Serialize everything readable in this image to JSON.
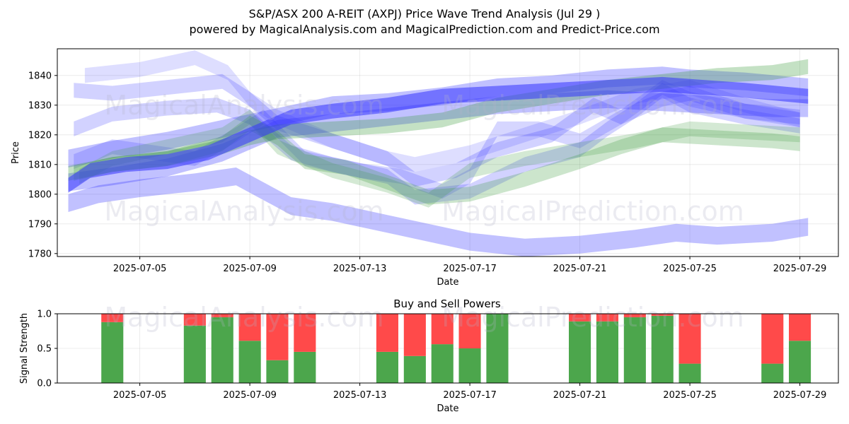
{
  "figure": {
    "title_line1": "S&P/ASX 200 A-REIT (AXPJ) Price Wave Trend Analysis (Jul 29 )",
    "title_line2": "powered by MagicalAnalysis.com and MagicalPrediction.com and Predict-Price.com"
  },
  "watermarks": {
    "top_a": "MagicalAnalysis.com",
    "top_b": "MagicalPrediction.com",
    "mid_a": "MagicalAnalysis.com",
    "mid_b": "MagicalPrediction.com",
    "low_a": "MagicalAnalysis.com",
    "low_b": "MagicalPrediction.com"
  },
  "colors": {
    "green": "#3a9a3a",
    "blue": "#3333ff",
    "buy": "#4ca64c",
    "sell": "#ff4a4a"
  },
  "chart_data": [
    {
      "type": "area",
      "title": "",
      "xlabel": "Date",
      "ylabel": "Price",
      "x_range": [
        0,
        28.4
      ],
      "x_origin_date": "2025-07-02",
      "ylim": [
        1779,
        1849
      ],
      "x_ticks": [
        {
          "x": 3,
          "label": "2025-07-05"
        },
        {
          "x": 7,
          "label": "2025-07-09"
        },
        {
          "x": 11,
          "label": "2025-07-13"
        },
        {
          "x": 15,
          "label": "2025-07-17"
        },
        {
          "x": 19,
          "label": "2025-07-21"
        },
        {
          "x": 23,
          "label": "2025-07-25"
        },
        {
          "x": 27,
          "label": "2025-07-29"
        }
      ],
      "y_ticks": [
        1780,
        1790,
        1800,
        1810,
        1820,
        1830,
        1840
      ],
      "grid": true,
      "bands": [
        {
          "color": "blue",
          "opacity": 0.3,
          "width": 6,
          "x": [
            0.4,
            1.5,
            3,
            5,
            6.5,
            7.5,
            8.5,
            10,
            12,
            14,
            15,
            17,
            19,
            21,
            22.5,
            24,
            26,
            27.3
          ],
          "y": [
            1797,
            1800,
            1802,
            1804,
            1806,
            1801,
            1796,
            1794,
            1790,
            1786,
            1784,
            1782,
            1783,
            1785,
            1787,
            1786,
            1787,
            1789
          ]
        },
        {
          "color": "blue",
          "opacity": 0.3,
          "width": 6,
          "x": [
            0.4,
            2,
            4,
            6,
            7,
            8,
            10,
            12,
            14,
            16,
            18,
            20,
            22,
            23,
            25,
            27.3
          ],
          "y": [
            1812,
            1815,
            1818,
            1822,
            1824,
            1826,
            1830,
            1831,
            1833,
            1836,
            1837,
            1839,
            1840,
            1839,
            1838,
            1836
          ]
        },
        {
          "color": "blue",
          "opacity": 0.3,
          "width": 6,
          "x": [
            0.4,
            2,
            4,
            6,
            7,
            8,
            10,
            12,
            14,
            16,
            18,
            20,
            22,
            24,
            26,
            27.3
          ],
          "y": [
            1804,
            1806,
            1809,
            1814,
            1818,
            1822,
            1824,
            1826,
            1828,
            1830,
            1831,
            1832,
            1831,
            1830,
            1829,
            1829
          ]
        },
        {
          "color": "blue",
          "opacity": 0.22,
          "width": 5,
          "x": [
            0.6,
            2,
            4,
            6,
            7,
            8,
            10,
            12,
            13,
            14.5,
            16,
            18,
            19.5,
            20.5,
            22,
            23,
            25,
            27
          ],
          "y": [
            1835,
            1834,
            1836,
            1838,
            1832,
            1824,
            1818,
            1812,
            1805,
            1808,
            1815,
            1820,
            1830,
            1826,
            1832,
            1834,
            1828,
            1826
          ]
        },
        {
          "color": "blue",
          "opacity": 0.22,
          "width": 5,
          "x": [
            0.6,
            2,
            4,
            5.8,
            7,
            8.5,
            10,
            12,
            13,
            15,
            17,
            19,
            20,
            21,
            22,
            23,
            25,
            27
          ],
          "y": [
            1822,
            1827,
            1829,
            1830,
            1826,
            1814,
            1810,
            1806,
            1799,
            1801,
            1810,
            1815,
            1822,
            1828,
            1835,
            1830,
            1826,
            1823
          ]
        },
        {
          "color": "blue",
          "opacity": 0.2,
          "width": 5,
          "x": [
            0.6,
            2,
            3.5,
            5,
            6.5,
            7.5,
            9,
            11,
            12.5,
            14,
            15,
            16,
            17.5,
            19,
            20.5,
            22,
            23,
            25,
            27
          ],
          "y": [
            1811,
            1816,
            1814,
            1812,
            1820,
            1826,
            1812,
            1808,
            1806,
            1801,
            1806,
            1822,
            1822,
            1818,
            1826,
            1836,
            1832,
            1828,
            1825
          ]
        },
        {
          "color": "blue",
          "opacity": 0.16,
          "width": 5,
          "x": [
            1,
            3,
            5,
            6.2,
            7,
            8,
            10,
            12,
            13,
            15,
            17,
            19,
            21,
            23,
            25,
            27
          ],
          "y": [
            1840,
            1842,
            1846,
            1841,
            1832,
            1826,
            1818,
            1812,
            1810,
            1814,
            1820,
            1826,
            1833,
            1836,
            1830,
            1825
          ]
        },
        {
          "color": "green",
          "opacity": 0.3,
          "width": 5,
          "x": [
            0.4,
            2,
            4,
            6,
            7,
            8,
            10,
            12,
            14,
            16,
            18,
            20,
            22,
            24,
            26,
            27.3
          ],
          "y": [
            1807,
            1810,
            1812,
            1816,
            1819,
            1821,
            1822,
            1823,
            1825,
            1830,
            1833,
            1836,
            1838,
            1840,
            1841,
            1843
          ]
        },
        {
          "color": "green",
          "opacity": 0.26,
          "width": 5,
          "x": [
            0.6,
            2,
            4,
            6,
            7,
            8,
            9,
            10.5,
            12,
            13.5,
            15,
            17,
            19,
            20.5,
            22,
            24,
            26,
            27
          ],
          "y": [
            1807,
            1810,
            1812,
            1817,
            1824,
            1819,
            1811,
            1809,
            1804,
            1799,
            1800,
            1805,
            1811,
            1816,
            1820,
            1819,
            1818,
            1817
          ]
        },
        {
          "color": "green",
          "opacity": 0.22,
          "width": 5,
          "x": [
            0.8,
            2,
            4,
            6,
            7,
            8,
            10,
            12,
            13.5,
            15,
            17,
            19,
            21,
            23,
            25,
            27
          ],
          "y": [
            1806,
            1812,
            1816,
            1820,
            1826,
            1816,
            1808,
            1803,
            1798,
            1808,
            1812,
            1815,
            1818,
            1822,
            1821,
            1820
          ]
        },
        {
          "color": "blue",
          "opacity": 0.55,
          "width": 5,
          "x": [
            0.4,
            1.2,
            2.5,
            4,
            5.5,
            7,
            8.5,
            10,
            12,
            14,
            16,
            18,
            20,
            22,
            23.5,
            25,
            27.3
          ],
          "y": [
            1803,
            1808,
            1810,
            1811,
            1814,
            1820,
            1826,
            1828,
            1830,
            1833,
            1834,
            1835,
            1836,
            1837,
            1836,
            1835,
            1833
          ]
        }
      ]
    },
    {
      "type": "bar",
      "title": "Buy and Sell Powers",
      "xlabel": "Date",
      "ylabel": "Signal Strength",
      "ylim": [
        0,
        1
      ],
      "x_range": [
        0,
        28.4
      ],
      "x_ticks": [
        {
          "x": 3,
          "label": "2025-07-05"
        },
        {
          "x": 7,
          "label": "2025-07-09"
        },
        {
          "x": 11,
          "label": "2025-07-13"
        },
        {
          "x": 15,
          "label": "2025-07-17"
        },
        {
          "x": 19,
          "label": "2025-07-21"
        },
        {
          "x": 23,
          "label": "2025-07-25"
        },
        {
          "x": 27,
          "label": "2025-07-29"
        }
      ],
      "y_ticks": [
        {
          "v": 0,
          "label": "0.0"
        },
        {
          "v": 0.5,
          "label": "0.5"
        },
        {
          "v": 1,
          "label": "1.0"
        }
      ],
      "series": [
        {
          "name": "Buy",
          "color": "buy",
          "x": [
            2,
            5,
            6,
            7,
            8,
            9,
            12,
            13,
            14,
            15,
            16,
            19,
            20,
            21,
            22,
            23,
            26,
            27
          ],
          "values": [
            0.88,
            0.83,
            0.95,
            0.61,
            0.33,
            0.45,
            0.45,
            0.39,
            0.56,
            0.5,
            1.0,
            0.89,
            0.89,
            0.95,
            0.97,
            0.28,
            0.28,
            0.61
          ]
        },
        {
          "name": "Sell",
          "color": "sell",
          "x": [
            2,
            5,
            6,
            7,
            8,
            9,
            12,
            13,
            14,
            15,
            16,
            19,
            20,
            21,
            22,
            23,
            26,
            27
          ],
          "values": [
            0.12,
            0.17,
            0.05,
            0.39,
            0.67,
            0.55,
            0.55,
            0.61,
            0.44,
            0.5,
            0.0,
            0.11,
            0.11,
            0.05,
            0.03,
            0.72,
            0.72,
            0.39
          ]
        }
      ]
    }
  ]
}
